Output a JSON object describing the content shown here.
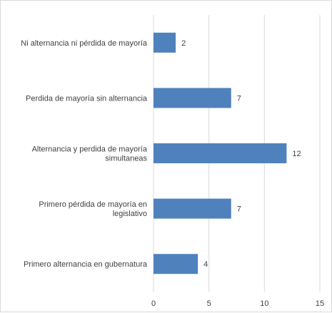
{
  "chart_data": {
    "type": "bar",
    "orientation": "horizontal",
    "categories": [
      [
        "Ni alternancia ni pérdida de mayoría"
      ],
      [
        "Perdida de mayoría sin alternancia"
      ],
      [
        "Alternancia y perdida de mayoría",
        "simultaneas"
      ],
      [
        "Primero pérdida de mayoría en",
        "legislativo"
      ],
      [
        "Primero alternancia en gubernatura"
      ]
    ],
    "values": [
      2,
      7,
      12,
      7,
      4
    ],
    "xlim": [
      0,
      15
    ],
    "x_ticks": [
      "0",
      "5",
      "10",
      "15"
    ],
    "grid": "vertical",
    "data_labels": true,
    "bar_color": "#4f81bd",
    "title": "",
    "xlabel": "",
    "ylabel": ""
  }
}
